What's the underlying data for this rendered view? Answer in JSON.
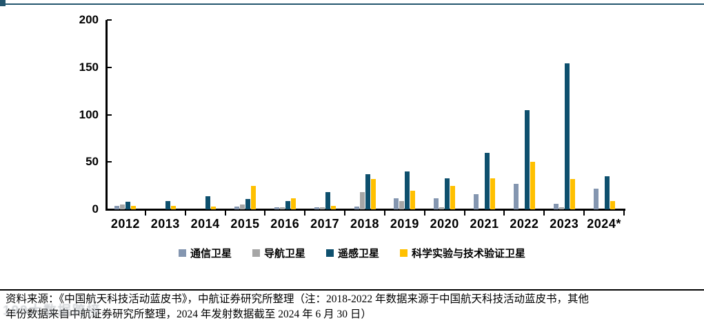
{
  "chart_data": {
    "type": "bar",
    "categories": [
      "2012",
      "2013",
      "2014",
      "2015",
      "2016",
      "2017",
      "2018",
      "2019",
      "2020",
      "2021",
      "2022",
      "2023",
      "2024*"
    ],
    "series": [
      {
        "name": "通信卫星",
        "color": "#8496B0",
        "values": [
          4,
          0,
          0,
          3,
          2,
          2,
          3,
          12,
          12,
          16,
          27,
          6,
          22
        ]
      },
      {
        "name": "导航卫星",
        "color": "#A6A6A6",
        "values": [
          5,
          0,
          0,
          5,
          2,
          2,
          18,
          9,
          2,
          0,
          0,
          2,
          0
        ]
      },
      {
        "name": "遥感卫星",
        "color": "#0E506E",
        "values": [
          8,
          9,
          14,
          11,
          9,
          18,
          37,
          40,
          33,
          60,
          105,
          154,
          35
        ]
      },
      {
        "name": "科学实验与技术验证卫星",
        "color": "#FFC000",
        "values": [
          4,
          4,
          3,
          25,
          12,
          4,
          32,
          20,
          25,
          33,
          50,
          32,
          9
        ]
      }
    ],
    "title": "",
    "xlabel": "",
    "ylabel": "",
    "ylim": [
      0,
      200
    ],
    "yticks": [
      0,
      50,
      100,
      150,
      200
    ],
    "grid": false,
    "legend_position": "bottom"
  },
  "footer": {
    "line1": "资料来源：《中国航天科技活动蓝皮书》，中航证券研究所整理（注：2018-2022 年数据来源于中国航天科技活动蓝皮书，其他",
    "line2": "年份数据来自中航证券研究所整理，2024 年发射数据截至 2024 年 6 月 30 日）"
  },
  "watermark": {
    "text": "199大数据跨接"
  },
  "colors": {
    "top_border": "#23556E",
    "axis": "#000000",
    "text": "#000000"
  }
}
